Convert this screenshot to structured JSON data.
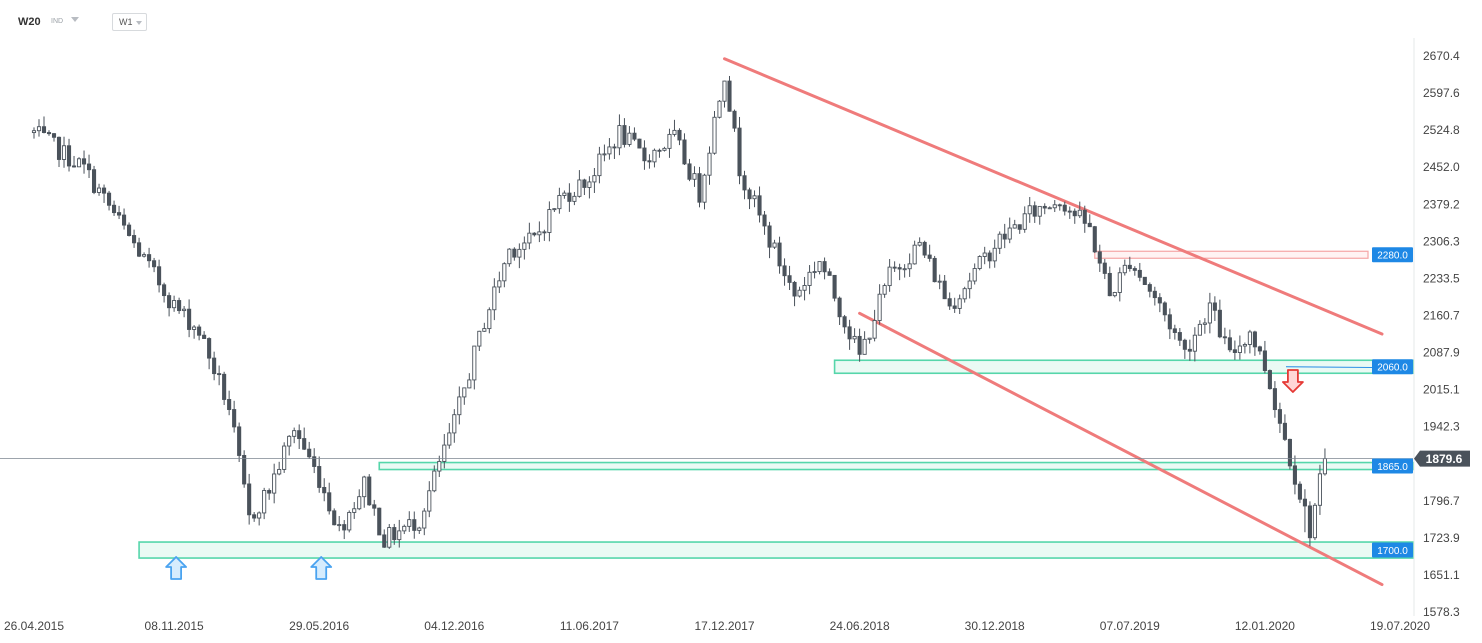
{
  "toolbar": {
    "symbol": "W20",
    "symbol_type": "IND",
    "timeframe": "W1"
  },
  "colors": {
    "candle": "#4a525b",
    "channel": "#ef7b7b",
    "zone_fill": "#eafaf4",
    "zone_border": "#55d6aa",
    "resistance_zone": "#f5a5a5",
    "tag": "#1e88e5",
    "price_tag": "#4a525b",
    "arrow_up": "#4aa3f0",
    "arrow_down": "#e53935"
  },
  "chart_data": {
    "type": "candlestick",
    "timeframe": "W1",
    "x_dates": [
      "26.04.2015",
      "08.11.2015",
      "29.05.2016",
      "04.12.2016",
      "11.06.2017",
      "17.12.2017",
      "24.06.2018",
      "30.12.2018",
      "07.07.2019",
      "12.01.2020",
      "19.07.2020"
    ],
    "y_ticks": [
      "2670.4",
      "2597.6",
      "2524.8",
      "2452.0",
      "2379.2",
      "2306.3",
      "2233.5",
      "2160.7",
      "2087.9",
      "2015.1",
      "1942.3",
      "1796.7",
      "1723.9",
      "1651.1",
      "1578.3"
    ],
    "y_range": [
      1578.3,
      2670.4
    ],
    "last_price": "1879.6",
    "close_path": [
      [
        "26.04.2015",
        2520
      ],
      [
        "05.07.2015",
        2450
      ],
      [
        "30.08.2015",
        2330
      ],
      [
        "08.11.2015",
        2180
      ],
      [
        "13.12.2015",
        2130
      ],
      [
        "24.01.2016",
        1980
      ],
      [
        "21.02.2016",
        1760
      ],
      [
        "20.03.2016",
        1820
      ],
      [
        "24.04.2016",
        1940
      ],
      [
        "29.05.2016",
        1840
      ],
      [
        "26.06.2016",
        1740
      ],
      [
        "31.07.2016",
        1830
      ],
      [
        "28.08.2016",
        1720
      ],
      [
        "16.10.2016",
        1760
      ],
      [
        "04.12.2016",
        1950
      ],
      [
        "15.01.2017",
        2150
      ],
      [
        "19.02.2017",
        2290
      ],
      [
        "26.03.2017",
        2310
      ],
      [
        "30.04.2017",
        2390
      ],
      [
        "11.06.2017",
        2430
      ],
      [
        "23.07.2017",
        2520
      ],
      [
        "27.08.2017",
        2470
      ],
      [
        "08.10.2017",
        2510
      ],
      [
        "12.11.2017",
        2400
      ],
      [
        "17.12.2017",
        2640
      ],
      [
        "07.01.2018",
        2450
      ],
      [
        "11.02.2018",
        2330
      ],
      [
        "25.03.2018",
        2200
      ],
      [
        "29.04.2018",
        2270
      ],
      [
        "24.06.2018",
        2080
      ],
      [
        "05.08.2018",
        2240
      ],
      [
        "16.09.2018",
        2300
      ],
      [
        "28.10.2018",
        2180
      ],
      [
        "30.12.2018",
        2300
      ],
      [
        "17.02.2019",
        2360
      ],
      [
        "31.03.2019",
        2390
      ],
      [
        "12.05.2019",
        2330
      ],
      [
        "09.06.2019",
        2200
      ],
      [
        "07.07.2019",
        2270
      ],
      [
        "18.08.2019",
        2180
      ],
      [
        "22.09.2019",
        2090
      ],
      [
        "27.10.2019",
        2180
      ],
      [
        "24.11.2019",
        2080
      ],
      [
        "22.12.2019",
        2130
      ],
      [
        "12.01.2020",
        2060
      ],
      [
        "15.03.2020",
        1740
      ],
      [
        "05.04.2020",
        1879.6
      ]
    ],
    "levels": [
      {
        "label": "2280.0",
        "value": 2280,
        "kind": "resistance"
      },
      {
        "label": "2060.0",
        "value": 2060,
        "kind": "support"
      },
      {
        "label": "1865.0",
        "value": 1865,
        "kind": "support"
      },
      {
        "label": "1700.0",
        "value": 1700,
        "kind": "support"
      }
    ],
    "channel": [
      {
        "from": [
          "17.12.2017",
          2665
        ],
        "to": [
          "19.07.2020",
          2140
        ]
      },
      {
        "from": [
          "24.06.2018",
          2165
        ],
        "to": [
          "19.07.2020",
          1640
        ]
      }
    ],
    "markers": [
      {
        "type": "arrow-up",
        "date": "08.11.2015"
      },
      {
        "type": "arrow-up",
        "date": "29.05.2016"
      },
      {
        "type": "arrow-down",
        "date": "12.01.2020"
      }
    ]
  }
}
